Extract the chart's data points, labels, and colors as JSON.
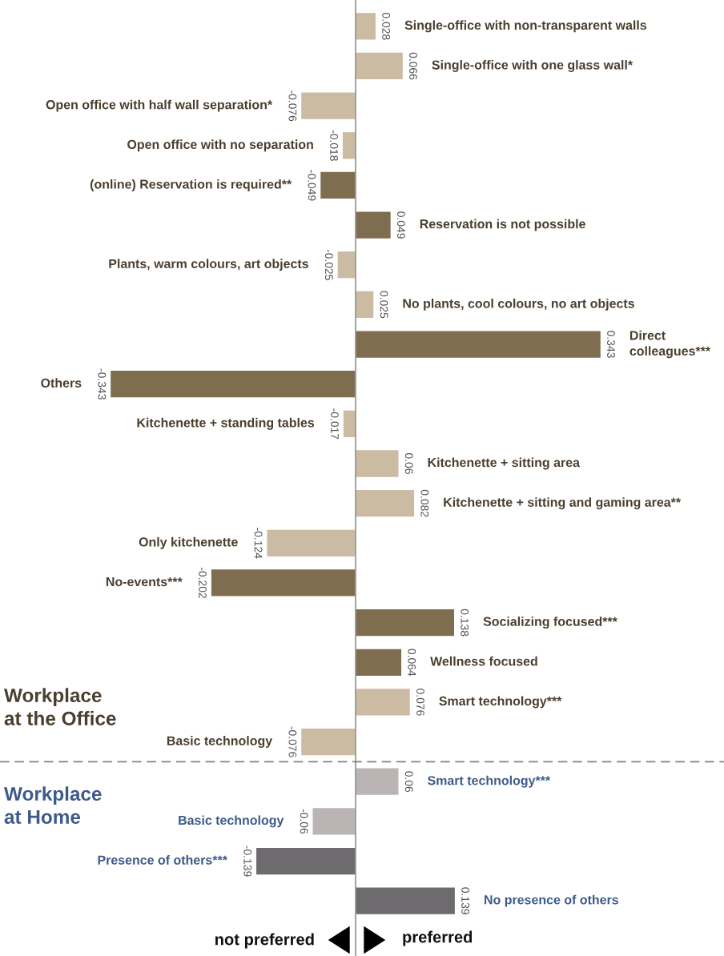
{
  "chart_data": {
    "type": "bar",
    "orientation": "horizontal",
    "categories": [
      "Single-office with non-transparent walls",
      "Single-office with one glass wall*",
      "Open office with half wall separation*",
      "Open office with no separation",
      "(online) Reservation is required**",
      "Reservation is not possible",
      "Plants, warm colours, art objects",
      "No plants, cool colours, no art objects",
      "Direct\ncolleagues***",
      "Others",
      "Kitchenette + standing tables",
      "Kitchenette + sitting area",
      "Kitchenette + sitting and gaming area**",
      "Only kitchenette",
      "No-events***",
      "Socializing focused***",
      "Wellness focused",
      "Smart technology***",
      "Basic technology",
      "Smart technology***",
      "Basic technology",
      "Presence of others***",
      "No presence of others"
    ],
    "values": [
      0.028,
      0.066,
      -0.076,
      -0.018,
      -0.049,
      0.049,
      -0.025,
      0.025,
      0.343,
      -0.343,
      -0.017,
      0.06,
      0.082,
      -0.124,
      -0.202,
      0.138,
      0.064,
      0.076,
      -0.076,
      0.06,
      -0.06,
      -0.139,
      0.139
    ],
    "colors": [
      "#cbbba3",
      "#cbbba3",
      "#cbbba3",
      "#cbbba3",
      "#7f6d50",
      "#7f6d50",
      "#cbbba3",
      "#cbbba3",
      "#7f6d50",
      "#7f6d50",
      "#cbbba3",
      "#cbbba3",
      "#cbbba3",
      "#cbbba3",
      "#7f6d50",
      "#7f6d50",
      "#7f6d50",
      "#cbbba3",
      "#cbbba3",
      "#bab4b4",
      "#bab4b4",
      "#6e6b6f",
      "#6e6b6f"
    ],
    "data_labels": true,
    "xlim": [
      -0.498,
      0.516
    ],
    "annotations": [
      "Workplace\nat the Office",
      "Workplace\nat Home",
      "not preferred",
      "preferred"
    ]
  }
}
